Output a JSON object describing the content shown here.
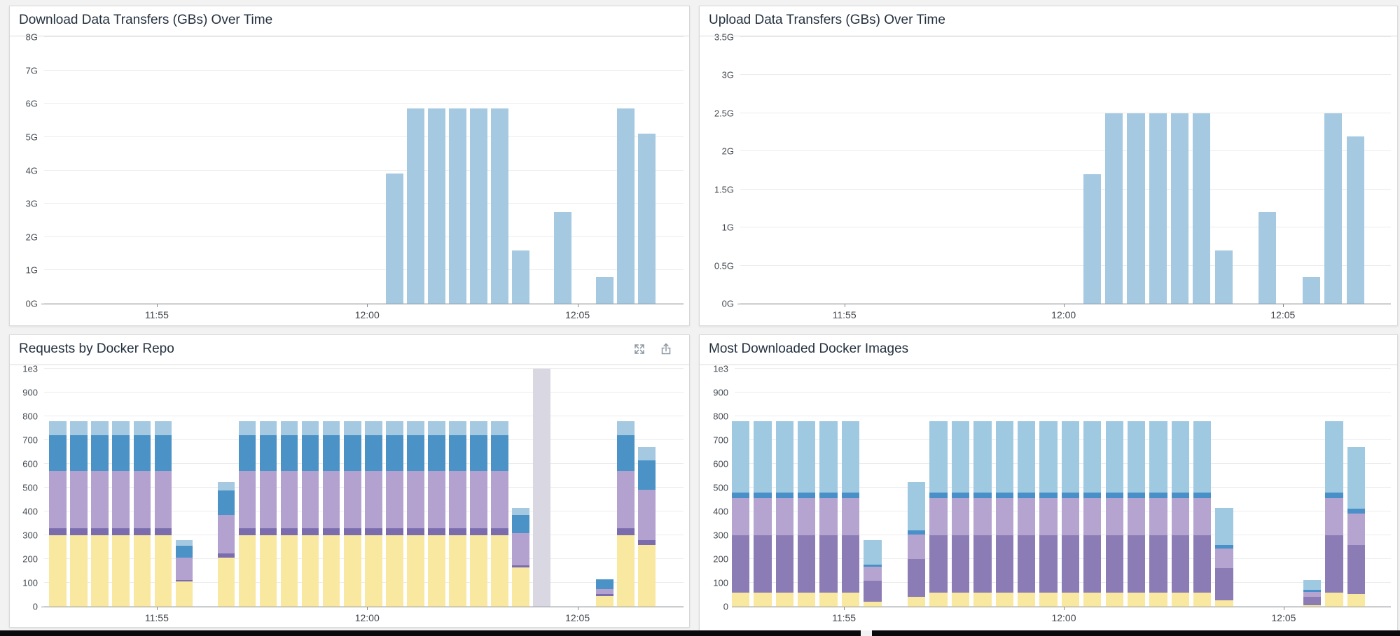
{
  "page": {
    "background_color": "#f2f2f2",
    "panel_background": "#ffffff",
    "panel_border_color": "#d8d8d8",
    "taskbar_color": "#0a0a0c",
    "title_color": "#24313f",
    "axis_label_color": "#454b51"
  },
  "icons": {
    "requests_panel_controls": [
      "expand-icon",
      "export-icon"
    ]
  },
  "chart_data": [
    {
      "id": "download-data-transfers",
      "type": "bar",
      "title": "Download Data Transfers (GBs) Over Time",
      "legend_position": "none",
      "grid": true,
      "bucket_seconds": 30,
      "colors": [
        "#a4c9e1"
      ],
      "y_axis": {
        "max": 8,
        "ticks": [
          {
            "label": "0G",
            "value": 0
          },
          {
            "label": "1G",
            "value": 1
          },
          {
            "label": "2G",
            "value": 2
          },
          {
            "label": "3G",
            "value": 3
          },
          {
            "label": "4G",
            "value": 4
          },
          {
            "label": "5G",
            "value": 5
          },
          {
            "label": "6G",
            "value": 6
          },
          {
            "label": "7G",
            "value": 7
          },
          {
            "label": "8G",
            "value": 8
          }
        ]
      },
      "x_axis": {
        "ticks": [
          {
            "label": "11:55",
            "slot": 5
          },
          {
            "label": "12:00",
            "slot": 15
          },
          {
            "label": "12:05",
            "slot": 25
          }
        ]
      },
      "bars": [
        {
          "time": "12:00:30",
          "slot": 16,
          "value": 3.9
        },
        {
          "time": "12:01:00",
          "slot": 17,
          "value": 5.85
        },
        {
          "time": "12:01:30",
          "slot": 18,
          "value": 5.85
        },
        {
          "time": "12:02:00",
          "slot": 19,
          "value": 5.85
        },
        {
          "time": "12:02:30",
          "slot": 20,
          "value": 5.85
        },
        {
          "time": "12:03:00",
          "slot": 21,
          "value": 5.85
        },
        {
          "time": "12:03:30",
          "slot": 22,
          "value": 1.6
        },
        {
          "time": "12:04:30",
          "slot": 24,
          "value": 2.75
        },
        {
          "time": "12:05:30",
          "slot": 26,
          "value": 0.8
        },
        {
          "time": "12:06:00",
          "slot": 27,
          "value": 5.85
        },
        {
          "time": "12:06:30",
          "slot": 28,
          "value": 5.1
        }
      ]
    },
    {
      "id": "upload-data-transfers",
      "type": "bar",
      "title": "Upload Data Transfers (GBs) Over Time",
      "legend_position": "none",
      "grid": true,
      "bucket_seconds": 30,
      "colors": [
        "#a4c9e1"
      ],
      "y_axis": {
        "max": 3.5,
        "ticks": [
          {
            "label": "0G",
            "value": 0
          },
          {
            "label": "0.5G",
            "value": 0.5
          },
          {
            "label": "1G",
            "value": 1
          },
          {
            "label": "1.5G",
            "value": 1.5
          },
          {
            "label": "2G",
            "value": 2
          },
          {
            "label": "2.5G",
            "value": 2.5
          },
          {
            "label": "3G",
            "value": 3
          },
          {
            "label": "3.5G",
            "value": 3.5
          }
        ]
      },
      "x_axis": {
        "ticks": [
          {
            "label": "11:55",
            "slot": 5
          },
          {
            "label": "12:00",
            "slot": 15
          },
          {
            "label": "12:05",
            "slot": 25
          }
        ]
      },
      "bars": [
        {
          "time": "12:00:30",
          "slot": 16,
          "value": 1.7
        },
        {
          "time": "12:01:00",
          "slot": 17,
          "value": 2.5
        },
        {
          "time": "12:01:30",
          "slot": 18,
          "value": 2.5
        },
        {
          "time": "12:02:00",
          "slot": 19,
          "value": 2.5
        },
        {
          "time": "12:02:30",
          "slot": 20,
          "value": 2.5
        },
        {
          "time": "12:03:00",
          "slot": 21,
          "value": 2.5
        },
        {
          "time": "12:03:30",
          "slot": 22,
          "value": 0.7
        },
        {
          "time": "12:04:30",
          "slot": 24,
          "value": 1.2
        },
        {
          "time": "12:05:30",
          "slot": 26,
          "value": 0.35
        },
        {
          "time": "12:06:00",
          "slot": 27,
          "value": 2.5
        },
        {
          "time": "12:06:30",
          "slot": 28,
          "value": 2.2
        }
      ]
    },
    {
      "id": "requests-by-docker-repo",
      "type": "bar",
      "stacked": true,
      "title": "Requests by Docker Repo",
      "legend_position": "none",
      "grid": true,
      "bucket_seconds": 30,
      "series_names": [
        "series-yellow",
        "series-dark-purple",
        "series-light-purple",
        "series-blue",
        "series-light-blue"
      ],
      "colors": [
        "#f9e8a0",
        "#7b6cae",
        "#b3a1cf",
        "#4b92c6",
        "#a4c9e1"
      ],
      "gray_band_color": "#d9d7e1",
      "y_axis": {
        "max": 1000,
        "ticks": [
          {
            "label": "0",
            "value": 0
          },
          {
            "label": "100",
            "value": 100
          },
          {
            "label": "200",
            "value": 200
          },
          {
            "label": "300",
            "value": 300
          },
          {
            "label": "400",
            "value": 400
          },
          {
            "label": "500",
            "value": 500
          },
          {
            "label": "600",
            "value": 600
          },
          {
            "label": "700",
            "value": 700
          },
          {
            "label": "800",
            "value": 800
          },
          {
            "label": "900",
            "value": 900
          },
          {
            "label": "1e3",
            "value": 1000
          }
        ]
      },
      "x_axis": {
        "ticks": [
          {
            "label": "11:55",
            "slot": 5
          },
          {
            "label": "12:00",
            "slot": 15
          },
          {
            "label": "12:05",
            "slot": 25
          }
        ]
      },
      "bars": [
        {
          "time": "11:52:30",
          "slot": 0,
          "values": [
            300,
            30,
            240,
            150,
            60
          ]
        },
        {
          "time": "11:53:00",
          "slot": 1,
          "values": [
            300,
            30,
            240,
            150,
            60
          ]
        },
        {
          "time": "11:53:30",
          "slot": 2,
          "values": [
            300,
            30,
            240,
            150,
            60
          ]
        },
        {
          "time": "11:54:00",
          "slot": 3,
          "values": [
            300,
            30,
            240,
            150,
            60
          ]
        },
        {
          "time": "11:54:30",
          "slot": 4,
          "values": [
            300,
            30,
            240,
            150,
            60
          ]
        },
        {
          "time": "11:55:00",
          "slot": 5,
          "values": [
            300,
            30,
            240,
            150,
            60
          ]
        },
        {
          "time": "11:55:30",
          "slot": 6,
          "values": [
            105,
            8,
            92,
            52,
            23
          ]
        },
        {
          "time": "11:56:30",
          "slot": 8,
          "values": [
            205,
            20,
            160,
            102,
            38
          ]
        },
        {
          "time": "11:57:00",
          "slot": 9,
          "values": [
            300,
            30,
            240,
            150,
            60
          ]
        },
        {
          "time": "11:57:30",
          "slot": 10,
          "values": [
            300,
            30,
            240,
            150,
            60
          ]
        },
        {
          "time": "11:58:00",
          "slot": 11,
          "values": [
            300,
            30,
            240,
            150,
            60
          ]
        },
        {
          "time": "11:58:30",
          "slot": 12,
          "values": [
            300,
            30,
            240,
            150,
            60
          ]
        },
        {
          "time": "11:59:00",
          "slot": 13,
          "values": [
            300,
            30,
            240,
            150,
            60
          ]
        },
        {
          "time": "11:59:30",
          "slot": 14,
          "values": [
            300,
            30,
            240,
            150,
            60
          ]
        },
        {
          "time": "12:00:00",
          "slot": 15,
          "values": [
            300,
            30,
            240,
            150,
            60
          ]
        },
        {
          "time": "12:00:30",
          "slot": 16,
          "values": [
            300,
            30,
            240,
            150,
            60
          ]
        },
        {
          "time": "12:01:00",
          "slot": 17,
          "values": [
            300,
            30,
            240,
            150,
            60
          ]
        },
        {
          "time": "12:01:30",
          "slot": 18,
          "values": [
            300,
            30,
            240,
            150,
            60
          ]
        },
        {
          "time": "12:02:00",
          "slot": 19,
          "values": [
            300,
            30,
            240,
            150,
            60
          ]
        },
        {
          "time": "12:02:30",
          "slot": 20,
          "values": [
            300,
            30,
            240,
            150,
            60
          ]
        },
        {
          "time": "12:03:00",
          "slot": 21,
          "values": [
            300,
            30,
            240,
            150,
            60
          ]
        },
        {
          "time": "12:03:30",
          "slot": 22,
          "values": [
            165,
            10,
            135,
            75,
            30
          ]
        },
        {
          "time": "12:04:00",
          "slot": 23,
          "values": [
            1000
          ],
          "color": "#d9d7e1"
        },
        {
          "time": "12:05:30",
          "slot": 26,
          "values": [
            45,
            8,
            22,
            40,
            0
          ]
        },
        {
          "time": "12:06:00",
          "slot": 27,
          "values": [
            300,
            30,
            240,
            150,
            60
          ]
        },
        {
          "time": "12:06:30",
          "slot": 28,
          "values": [
            258,
            20,
            212,
            126,
            54
          ]
        }
      ]
    },
    {
      "id": "most-downloaded-docker-images",
      "type": "bar",
      "stacked": true,
      "title": "Most Downloaded Docker Images",
      "legend_position": "none",
      "grid": true,
      "bucket_seconds": 30,
      "series_names": [
        "series-yellow",
        "series-purple",
        "series-light-purple",
        "series-dark-blue",
        "series-light-blue"
      ],
      "colors": [
        "#f9e8a0",
        "#8b7cb5",
        "#b5a4cf",
        "#4a90c8",
        "#9fc9e1"
      ],
      "y_axis": {
        "max": 1000,
        "ticks": [
          {
            "label": "0",
            "value": 0
          },
          {
            "label": "100",
            "value": 100
          },
          {
            "label": "200",
            "value": 200
          },
          {
            "label": "300",
            "value": 300
          },
          {
            "label": "400",
            "value": 400
          },
          {
            "label": "500",
            "value": 500
          },
          {
            "label": "600",
            "value": 600
          },
          {
            "label": "700",
            "value": 700
          },
          {
            "label": "800",
            "value": 800
          },
          {
            "label": "900",
            "value": 900
          },
          {
            "label": "1e3",
            "value": 1000
          }
        ]
      },
      "x_axis": {
        "ticks": [
          {
            "label": "11:55",
            "slot": 5
          },
          {
            "label": "12:00",
            "slot": 15
          },
          {
            "label": "12:05",
            "slot": 25
          }
        ]
      },
      "bars": [
        {
          "time": "11:52:30",
          "slot": 0,
          "values": [
            60,
            240,
            155,
            25,
            300
          ]
        },
        {
          "time": "11:53:00",
          "slot": 1,
          "values": [
            60,
            240,
            155,
            25,
            300
          ]
        },
        {
          "time": "11:53:30",
          "slot": 2,
          "values": [
            60,
            240,
            155,
            25,
            300
          ]
        },
        {
          "time": "11:54:00",
          "slot": 3,
          "values": [
            60,
            240,
            155,
            25,
            300
          ]
        },
        {
          "time": "11:54:30",
          "slot": 4,
          "values": [
            60,
            240,
            155,
            25,
            300
          ]
        },
        {
          "time": "11:55:00",
          "slot": 5,
          "values": [
            60,
            240,
            155,
            25,
            300
          ]
        },
        {
          "time": "11:55:30",
          "slot": 6,
          "values": [
            20,
            90,
            58,
            9,
            103
          ]
        },
        {
          "time": "11:56:30",
          "slot": 8,
          "values": [
            40,
            160,
            103,
            19,
            203
          ]
        },
        {
          "time": "11:57:00",
          "slot": 9,
          "values": [
            60,
            240,
            155,
            25,
            300
          ]
        },
        {
          "time": "11:57:30",
          "slot": 10,
          "values": [
            60,
            240,
            155,
            25,
            300
          ]
        },
        {
          "time": "11:58:00",
          "slot": 11,
          "values": [
            60,
            240,
            155,
            25,
            300
          ]
        },
        {
          "time": "11:58:30",
          "slot": 12,
          "values": [
            60,
            240,
            155,
            25,
            300
          ]
        },
        {
          "time": "11:59:00",
          "slot": 13,
          "values": [
            60,
            240,
            155,
            25,
            300
          ]
        },
        {
          "time": "11:59:30",
          "slot": 14,
          "values": [
            60,
            240,
            155,
            25,
            300
          ]
        },
        {
          "time": "12:00:00",
          "slot": 15,
          "values": [
            60,
            240,
            155,
            25,
            300
          ]
        },
        {
          "time": "12:00:30",
          "slot": 16,
          "values": [
            60,
            240,
            155,
            25,
            300
          ]
        },
        {
          "time": "12:01:00",
          "slot": 17,
          "values": [
            60,
            240,
            155,
            25,
            300
          ]
        },
        {
          "time": "12:01:30",
          "slot": 18,
          "values": [
            60,
            240,
            155,
            25,
            300
          ]
        },
        {
          "time": "12:02:00",
          "slot": 19,
          "values": [
            60,
            240,
            155,
            25,
            300
          ]
        },
        {
          "time": "12:02:30",
          "slot": 20,
          "values": [
            60,
            240,
            155,
            25,
            300
          ]
        },
        {
          "time": "12:03:00",
          "slot": 21,
          "values": [
            60,
            240,
            155,
            25,
            300
          ]
        },
        {
          "time": "12:03:30",
          "slot": 22,
          "values": [
            26,
            135,
            82,
            16,
            156
          ]
        },
        {
          "time": "12:05:30",
          "slot": 26,
          "values": [
            7,
            34,
            22,
            9,
            40
          ]
        },
        {
          "time": "12:06:00",
          "slot": 27,
          "values": [
            60,
            240,
            155,
            25,
            300
          ]
        },
        {
          "time": "12:06:30",
          "slot": 28,
          "values": [
            53,
            205,
            132,
            23,
            257
          ]
        }
      ]
    }
  ]
}
